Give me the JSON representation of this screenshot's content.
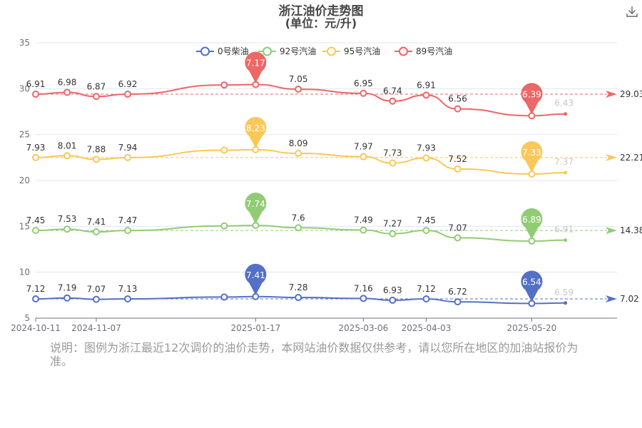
{
  "toolbar": {
    "download_icon": "download-icon"
  },
  "note": "说明：图例为浙江最近12次调价的油价走势，本网站油价数据仅供参考，请以您所在地区的加油站报价为准。",
  "chart_data": {
    "type": "line",
    "title": "浙江油价走势图",
    "subtitle": "(单位：元/升)",
    "xlabel": "",
    "ylabel": "",
    "ylim": [
      5,
      35
    ],
    "yticks": [
      5,
      10,
      15,
      20,
      25,
      30,
      35
    ],
    "xlim": [
      "2024-10-11",
      "2025-06-27"
    ],
    "xticks": [
      "2024-10-11",
      "2024-11-07",
      "2025-01-17",
      "2025-03-06",
      "2025-04-03",
      "2025-05-20"
    ],
    "grid": true,
    "legend_position": "top-center",
    "x": [
      "2024-10-11",
      "2024-10-25",
      "2024-11-07",
      "2024-11-21",
      "2025-01-03",
      "2025-01-17",
      "2025-02-05",
      "2025-03-06",
      "2025-03-19",
      "2025-04-03",
      "2025-04-17",
      "2025-05-20",
      "2025-06-04"
    ],
    "series": [
      {
        "name": "0号柴油",
        "color": "#5470c6",
        "plotted": [
          7.1,
          7.2,
          7.05,
          7.1,
          7.3,
          7.35,
          7.25,
          7.15,
          6.95,
          7.1,
          6.78,
          6.6,
          6.65
        ],
        "labels": [
          "7.12",
          "7.19",
          "7.07",
          "7.13",
          "",
          "",
          "7.28",
          "7.16",
          "6.93",
          "7.12",
          "6.72",
          "",
          ""
        ],
        "max": "7.41",
        "min": "6.54",
        "average": "7.02",
        "last_end": "6.59"
      },
      {
        "name": "92号汽油",
        "color": "#91cc75",
        "plotted": [
          14.55,
          14.7,
          14.4,
          14.55,
          15.05,
          15.1,
          14.85,
          14.6,
          14.2,
          14.55,
          13.75,
          13.4,
          13.5
        ],
        "labels": [
          "7.45",
          "7.53",
          "7.41",
          "7.47",
          "",
          "",
          "7.6",
          "7.49",
          "7.27",
          "7.45",
          "7.07",
          "",
          ""
        ],
        "max": "7.74",
        "min": "6.89",
        "average": "14.38",
        "last_end": "6.91"
      },
      {
        "name": "95号汽油",
        "color": "#fac858",
        "plotted": [
          22.5,
          22.7,
          22.3,
          22.5,
          23.3,
          23.35,
          22.95,
          22.6,
          21.9,
          22.45,
          21.25,
          20.7,
          20.85
        ],
        "labels": [
          "7.93",
          "8.01",
          "7.88",
          "7.94",
          "",
          "",
          "8.09",
          "7.97",
          "7.73",
          "7.93",
          "7.52",
          "",
          ""
        ],
        "max": "8.23",
        "min": "7.33",
        "average": "22.21",
        "last_end": "7.37"
      },
      {
        "name": "89号汽油",
        "color": "#ee6666",
        "plotted": [
          29.4,
          29.6,
          29.15,
          29.4,
          30.4,
          30.45,
          29.95,
          29.5,
          28.65,
          29.3,
          27.8,
          27.05,
          27.25
        ],
        "labels": [
          "6.91",
          "6.98",
          "6.87",
          "6.92",
          "",
          "",
          "7.05",
          "6.95",
          "6.74",
          "6.91",
          "6.56",
          "",
          ""
        ],
        "max": "7.17",
        "min": "6.39",
        "average": "29.03",
        "last_end": "6.43"
      }
    ]
  }
}
